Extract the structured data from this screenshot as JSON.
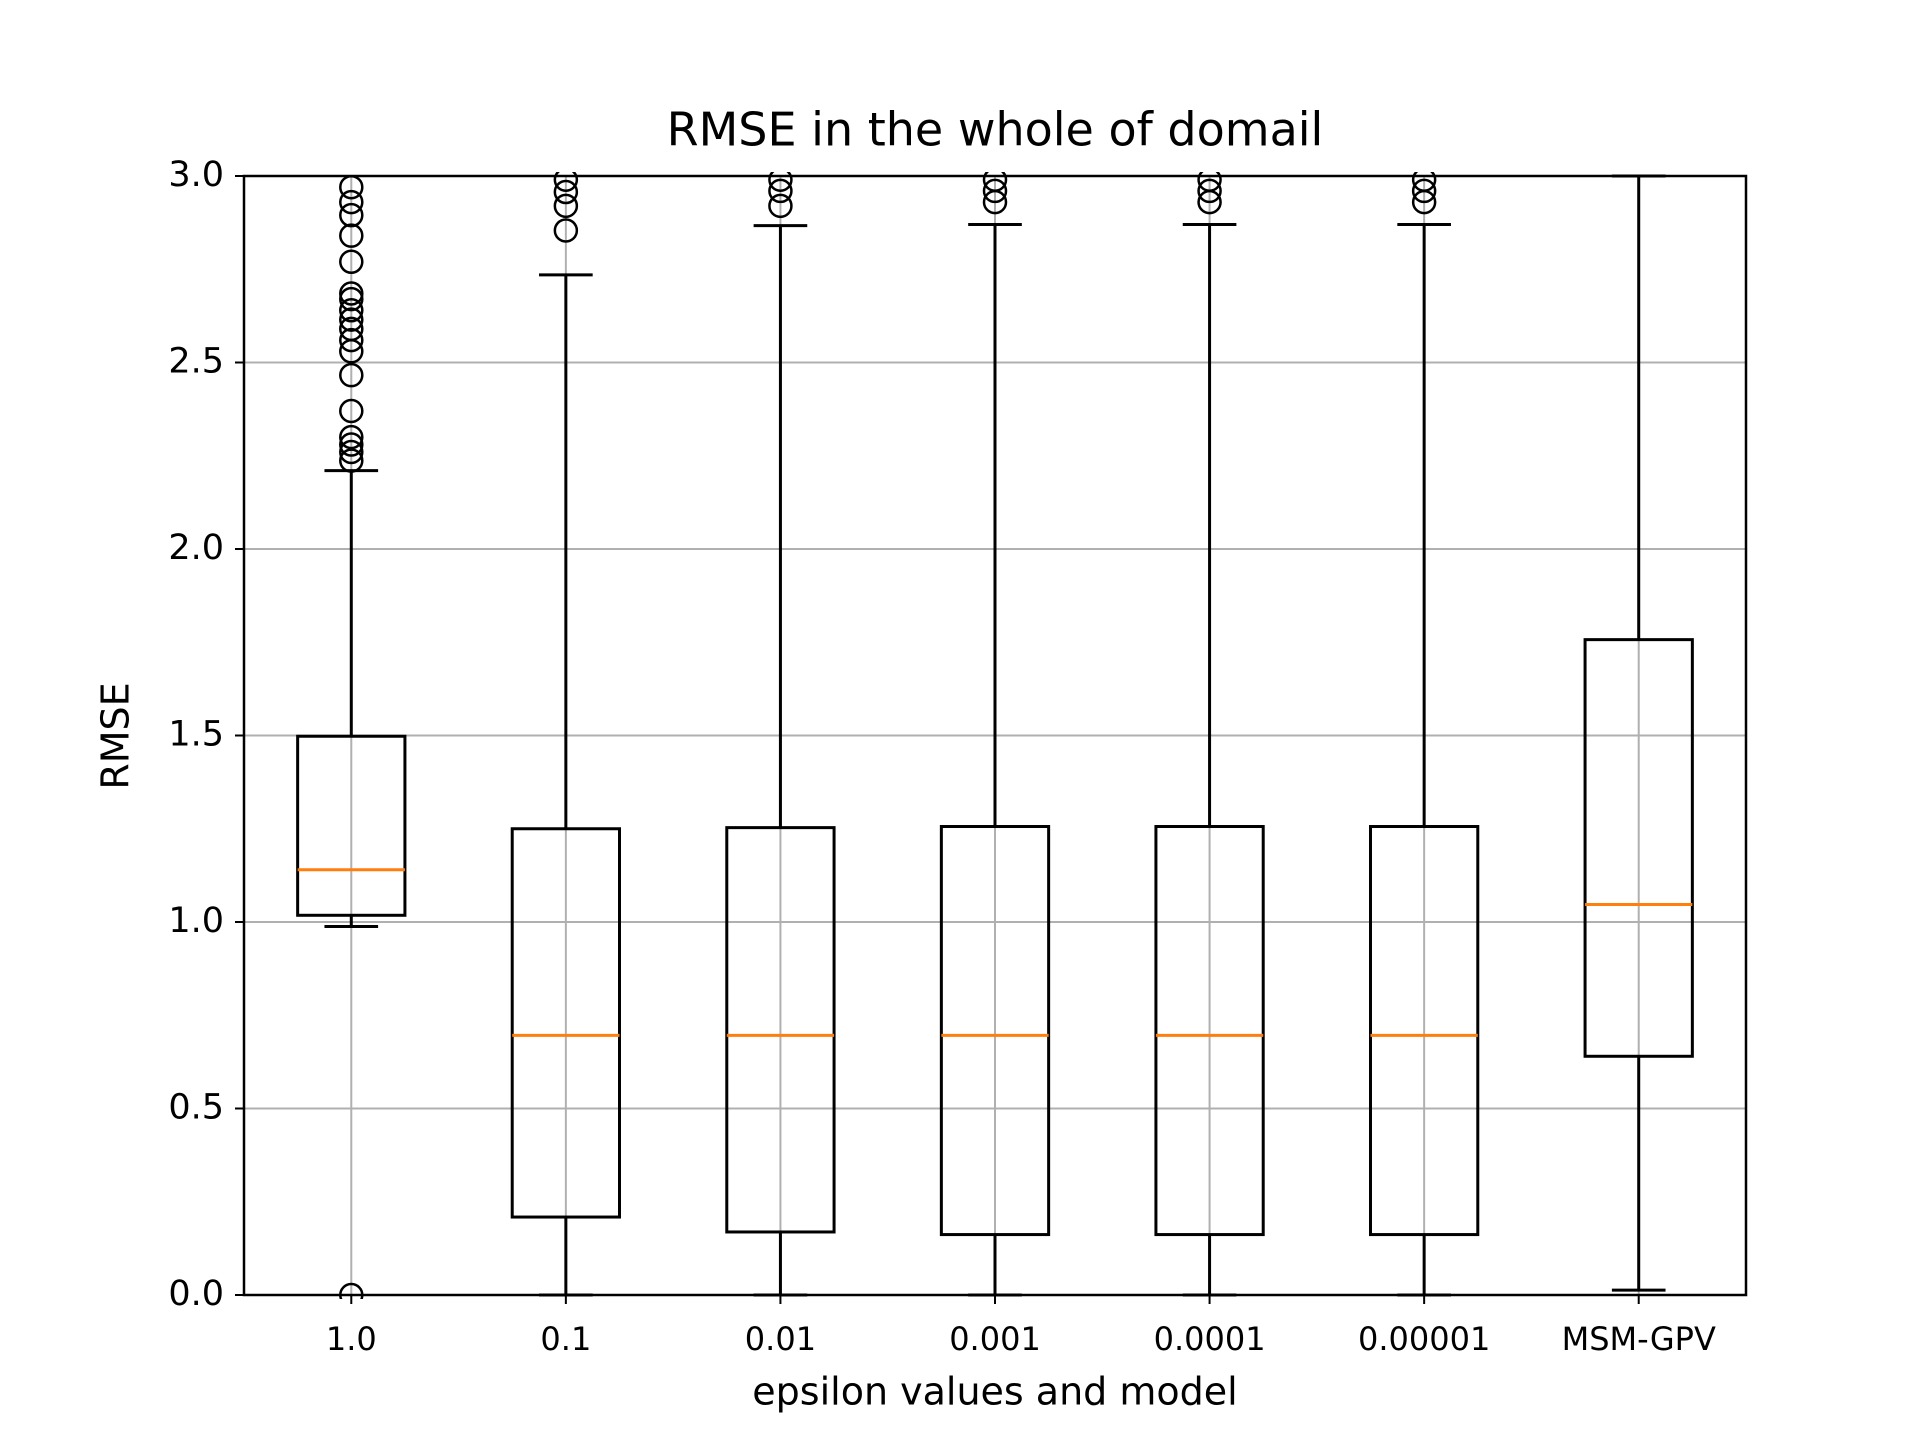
{
  "chart_data": {
    "type": "boxplot",
    "title": "RMSE in the whole of domail",
    "xlabel": "epsilon values and model",
    "ylabel": "RMSE",
    "categories": [
      "1.0",
      "0.1",
      "0.01",
      "0.001",
      "0.0001",
      "0.00001",
      "MSM-GPV"
    ],
    "boxes": [
      {
        "whislo": 0.988,
        "q1": 1.018,
        "med": 1.14,
        "q3": 1.498,
        "whishi": 2.21,
        "fliers": [
          0.0,
          2.237,
          2.26,
          2.28,
          2.3,
          2.37,
          2.466,
          2.53,
          2.56,
          2.59,
          2.615,
          2.64,
          2.67,
          2.685,
          2.77,
          2.84,
          2.895,
          2.93,
          2.97
        ]
      },
      {
        "whislo": 0.0,
        "q1": 0.209,
        "med": 0.696,
        "q3": 1.25,
        "whishi": 2.735,
        "fliers": [
          2.854,
          2.92,
          2.957,
          2.99
        ]
      },
      {
        "whislo": 0.0,
        "q1": 0.169,
        "med": 0.696,
        "q3": 1.253,
        "whishi": 2.867,
        "fliers": [
          2.92,
          2.96,
          2.99
        ]
      },
      {
        "whislo": 0.0,
        "q1": 0.162,
        "med": 0.696,
        "q3": 1.256,
        "whishi": 2.87,
        "fliers": [
          2.93,
          2.96,
          2.99
        ]
      },
      {
        "whislo": 0.0,
        "q1": 0.162,
        "med": 0.696,
        "q3": 1.256,
        "whishi": 2.87,
        "fliers": [
          2.93,
          2.96,
          2.99
        ]
      },
      {
        "whislo": 0.0,
        "q1": 0.162,
        "med": 0.696,
        "q3": 1.256,
        "whishi": 2.87,
        "fliers": [
          2.93,
          2.96,
          2.99
        ]
      },
      {
        "whislo": 0.013,
        "q1": 0.64,
        "med": 1.047,
        "q3": 1.757,
        "whishi": 3.0,
        "fliers": []
      }
    ],
    "box_color": "#000000",
    "median_color": "#ff7f0e",
    "grid_color": "#b0b0b0",
    "ylim": [
      0,
      3
    ],
    "yticks": [
      {
        "value": 0,
        "label": "0.0"
      },
      0.5,
      {
        "value": 1,
        "label": "1.0"
      },
      1.5,
      {
        "value": 2,
        "label": "2.0"
      },
      2.5,
      {
        "value": 3,
        "label": "3.0"
      }
    ],
    "grid": true
  }
}
